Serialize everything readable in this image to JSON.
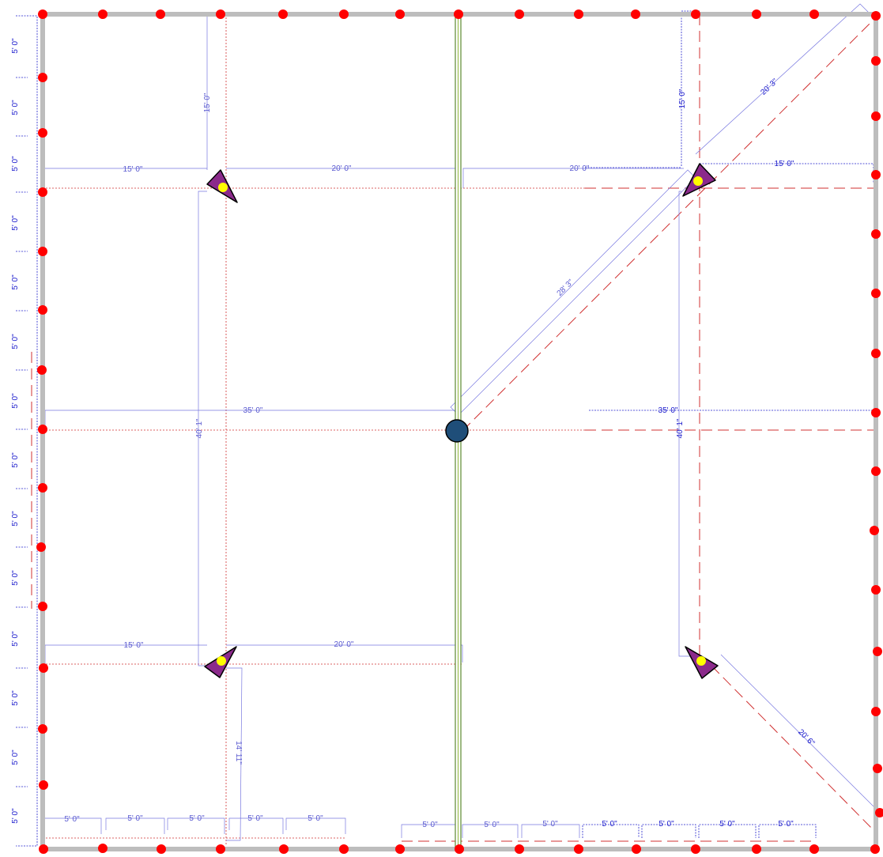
{
  "plan": {
    "marker_color": "#ff0000",
    "wall_color": "#bdbdbd",
    "center_beam_color": "#5c8a2e",
    "center_node_color": "#1f4e79",
    "sensor_fill": "#8b2a8b",
    "sensor_dot": "#ffff00",
    "dim_line_color": "#7070e0",
    "guide_line_color": "#d03030"
  },
  "labels": {
    "tl_vertical_15": "15' 0\"",
    "tr_vertical_15": "15' 0\"",
    "diag_20_3": "20' 3\"",
    "top_left_15": "15' 0\"",
    "top_mid_20": "20' 0\"",
    "top_right_20": "20' 0\"",
    "top_far_right_15": "15' 0\"",
    "diag_28_3": "28' 3\"",
    "mid_left_35": "35' 0\"",
    "mid_right_35": "35' 0\"",
    "left_vertical_40_1": "40' 1\"",
    "right_vertical_40_1": "40' 1\"",
    "bottom_left_15": "15' 0\"",
    "bottom_mid_20": "20' 0\"",
    "bl_vertical_14_11": "14' 11\"",
    "diag_20_6": "20' 6\"",
    "left_edge_ticks": [
      "5' 0\"",
      "5' 0\"",
      "5' 0\"",
      "5' 0\"",
      "5' 0\"",
      "5' 0\"",
      "5' 0\"",
      "5' 0\"",
      "5' 0\"",
      "5' 0\"",
      "5' 0\"",
      "5' 0\"",
      "5' 0\"",
      "5' 0\""
    ],
    "bottom_left_ticks": [
      "5' 0\"",
      "5' 0\"",
      "5' 0\"",
      "5' 0\"",
      "5' 0\""
    ],
    "bottom_right_ticks": [
      "5' 0\"",
      "5' 0\"",
      "5' 0\"",
      "5' 0\"",
      "5' 0\"",
      "5' 0\"",
      "5' 0\""
    ]
  }
}
